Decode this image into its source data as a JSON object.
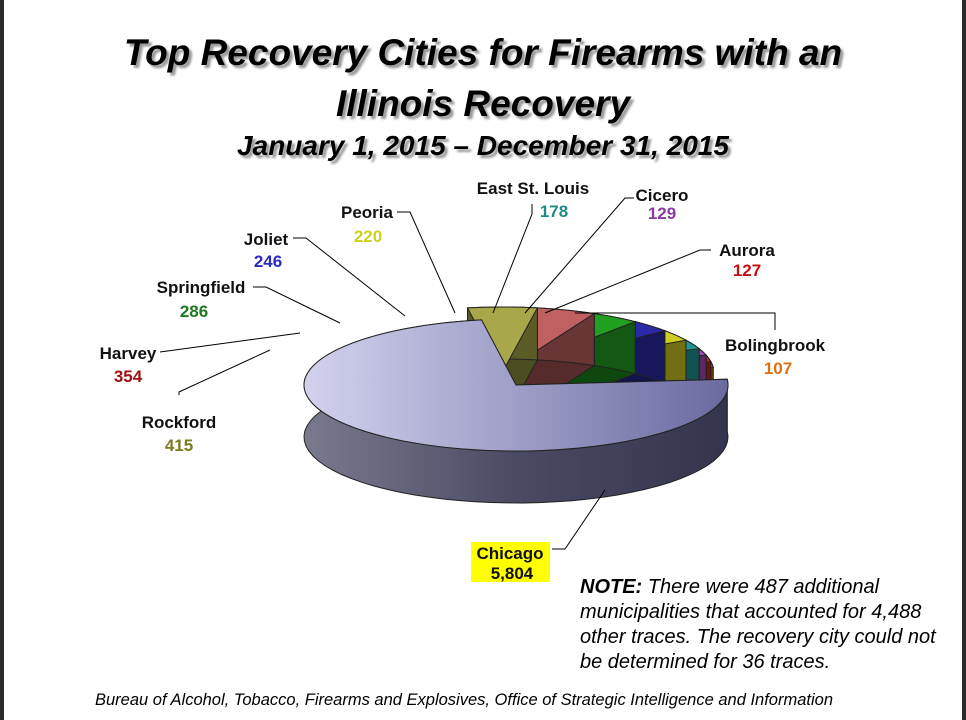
{
  "title_line1": "Top Recovery Cities for Firearms with an",
  "title_line2": "Illinois Recovery",
  "subtitle": "January 1, 2015 – December 31, 2015",
  "note": {
    "label": "NOTE:",
    "text": "There were 487 additional municipalities that accounted for 4,488 other traces.  The recovery city could not be determined for 36 traces."
  },
  "source": "Bureau of Alcohol, Tobacco, Firearms and Explosives, Office of Strategic Intelligence and Information",
  "chart_data": {
    "type": "pie",
    "style": "3D exploded",
    "title": "Top Recovery Cities for Firearms with an Illinois Recovery",
    "subtitle": "January 1, 2015 – December 31, 2015",
    "slices": [
      {
        "name": "Chicago",
        "value": 5804,
        "display": "5,804",
        "color": "#b9b9e0",
        "highlight": "#ffff00"
      },
      {
        "name": "Rockford",
        "value": 415,
        "display": "415",
        "color": "#a8a84a",
        "text_color": "#7b7b1f"
      },
      {
        "name": "Harvey",
        "value": 354,
        "display": "354",
        "color": "#c06060",
        "text_color": "#a01010"
      },
      {
        "name": "Springfield",
        "value": 286,
        "display": "286",
        "color": "#22a022",
        "text_color": "#1f7a1f"
      },
      {
        "name": "Joliet",
        "value": 246,
        "display": "246",
        "color": "#2a2aa8",
        "text_color": "#2b2bc2"
      },
      {
        "name": "Peoria",
        "value": 220,
        "display": "220",
        "color": "#cccc22",
        "text_color": "#cfcf1f"
      },
      {
        "name": "East St. Louis",
        "value": 178,
        "display": "178",
        "color": "#1f9595",
        "text_color": "#1e8c8c"
      },
      {
        "name": "Cicero",
        "value": 129,
        "display": "129",
        "color": "#a04cb0",
        "text_color": "#8a3aa0"
      },
      {
        "name": "Aurora",
        "value": 127,
        "display": "127",
        "color": "#cc2020",
        "text_color": "#c01010"
      },
      {
        "name": "Bolingbrook",
        "value": 107,
        "display": "107",
        "color": "#e07a10",
        "text_color": "#e07010"
      }
    ]
  }
}
